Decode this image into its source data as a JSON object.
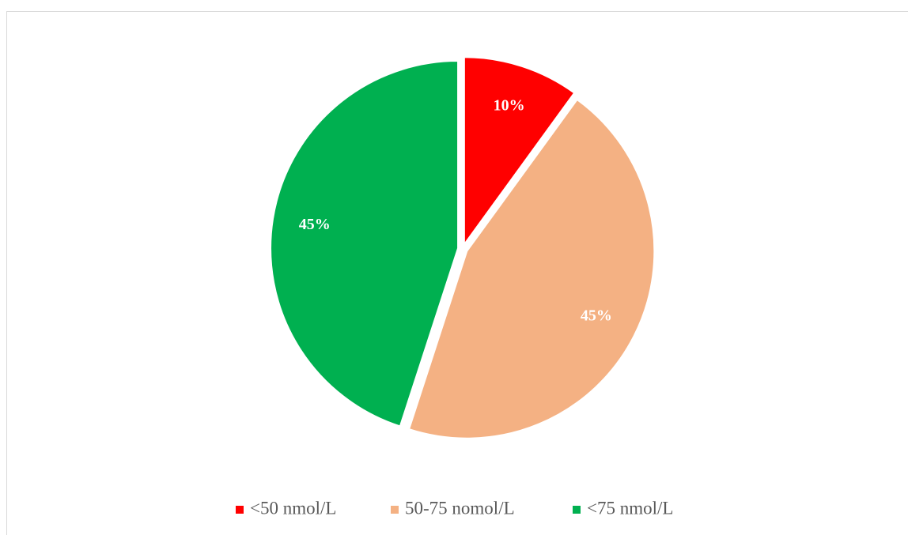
{
  "chart_data": {
    "type": "pie",
    "categories": [
      "<50 nmol/L",
      "50-75 nomol/L",
      "<75 nmol/L"
    ],
    "values": [
      10,
      45,
      45
    ],
    "value_labels": [
      "10%",
      "45%",
      "45%"
    ],
    "colors": [
      "#ff0000",
      "#f4b183",
      "#00b050"
    ],
    "legend": "bottom"
  }
}
